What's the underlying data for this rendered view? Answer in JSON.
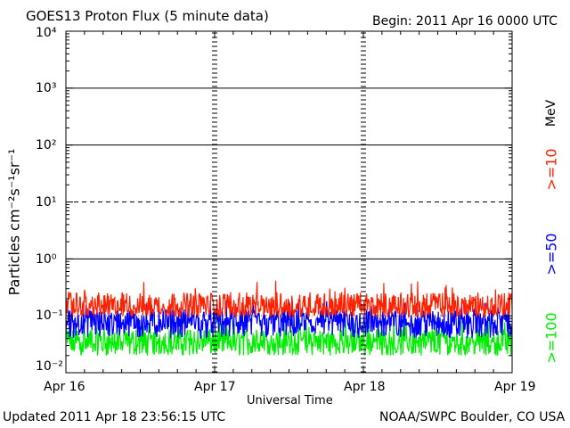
{
  "header": {
    "title": "GOES13 Proton Flux (5 minute data)",
    "begin": "Begin: 2011 Apr 16 0000 UTC"
  },
  "footer": {
    "updated": "Updated 2011 Apr 18 23:56:15 UTC",
    "credit": "NOAA/SWPC Boulder, CO USA"
  },
  "chart_data": {
    "type": "line",
    "title": "GOES13 Proton Flux (5 minute data)",
    "xlabel": "Universal Time",
    "ylabel": "Particles cm⁻²s⁻¹sr⁻¹",
    "y_scale": "log",
    "ylim": [
      0.01,
      10000
    ],
    "xlim": [
      "2011-04-16",
      "2011-04-19"
    ],
    "x_ticks": [
      "Apr 16",
      "Apr 17",
      "Apr 18",
      "Apr 19"
    ],
    "y_ticks": [
      "10⁻²",
      "10⁻¹",
      "10⁰",
      "10¹",
      "10²",
      "10³",
      "10⁴"
    ],
    "y_tick_values": [
      0.01,
      0.1,
      1,
      10,
      100,
      1000,
      10000
    ],
    "horizontal_lines": [
      {
        "value": 10000,
        "style": "solid"
      },
      {
        "value": 1000,
        "style": "solid"
      },
      {
        "value": 100,
        "style": "solid"
      },
      {
        "value": 10,
        "style": "dashed"
      },
      {
        "value": 1,
        "style": "solid"
      }
    ],
    "energy_unit": "MeV",
    "series": [
      {
        "name": ">=10",
        "color": "#ff2000",
        "typical": 0.14,
        "min": 0.095,
        "max": 0.42
      },
      {
        "name": ">=50",
        "color": "#0000ff",
        "typical": 0.08,
        "min": 0.04,
        "max": 0.19
      },
      {
        "name": ">=100",
        "color": "#00ee00",
        "typical": 0.035,
        "min": 0.02,
        "max": 0.09
      }
    ]
  }
}
